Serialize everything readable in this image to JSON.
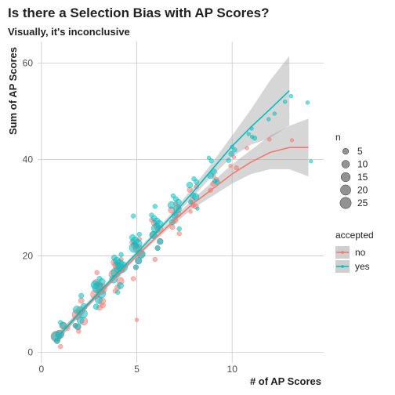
{
  "chart_data": {
    "type": "scatter",
    "title": "Is there a Selection Bias with AP Scores?",
    "subtitle": "Visually, it's inconclusive",
    "xlabel": "# of AP Scores",
    "ylabel": "Sum of AP Scores",
    "xlim": [
      -0.2,
      14.8
    ],
    "ylim": [
      -2.2,
      64.5
    ],
    "x_ticks": [
      0,
      5,
      10
    ],
    "y_ticks": [
      0,
      20,
      40,
      60
    ],
    "grid": true,
    "legend_placement": "right",
    "size_legend": {
      "title": "n",
      "entries": [
        {
          "label": "5",
          "value": 5
        },
        {
          "label": "10",
          "value": 10
        },
        {
          "label": "15",
          "value": 15
        },
        {
          "label": "20",
          "value": 20
        },
        {
          "label": "25",
          "value": 25
        }
      ]
    },
    "color_legend": {
      "title": "accepted",
      "entries": [
        {
          "label": "no",
          "color": "#f8766d"
        },
        {
          "label": "yes",
          "color": "#00bfc4"
        }
      ]
    },
    "series": [
      {
        "name": "no",
        "color": "#f8766d",
        "points": [
          [
            1,
            4,
            22
          ],
          [
            1,
            3,
            14
          ],
          [
            1,
            5,
            8
          ],
          [
            1,
            2,
            4
          ],
          [
            1,
            1,
            2
          ],
          [
            1.2,
            5,
            2
          ],
          [
            2,
            8,
            18
          ],
          [
            2,
            9,
            12
          ],
          [
            2,
            7,
            10
          ],
          [
            2,
            6,
            6
          ],
          [
            2,
            10,
            4
          ],
          [
            2,
            5,
            3
          ],
          [
            2,
            4,
            2
          ],
          [
            3,
            13,
            24
          ],
          [
            3,
            12,
            16
          ],
          [
            3,
            14,
            12
          ],
          [
            3,
            11,
            8
          ],
          [
            3,
            15,
            6
          ],
          [
            3,
            10,
            4
          ],
          [
            3,
            9,
            3
          ],
          [
            3,
            16,
            2
          ],
          [
            4,
            17,
            22
          ],
          [
            4,
            16,
            14
          ],
          [
            4,
            18,
            12
          ],
          [
            4,
            15,
            9
          ],
          [
            4,
            19,
            6
          ],
          [
            4,
            14,
            4
          ],
          [
            4,
            20,
            2
          ],
          [
            4,
            12,
            2
          ],
          [
            5,
            21,
            14
          ],
          [
            5,
            20,
            10
          ],
          [
            5,
            22,
            8
          ],
          [
            5,
            19,
            6
          ],
          [
            5,
            23,
            4
          ],
          [
            5,
            18,
            3
          ],
          [
            5,
            24,
            2
          ],
          [
            5,
            16,
            2
          ],
          [
            5,
            6,
            1
          ],
          [
            6,
            25,
            10
          ],
          [
            6,
            24,
            8
          ],
          [
            6,
            26,
            6
          ],
          [
            6,
            23,
            5
          ],
          [
            6,
            27,
            4
          ],
          [
            6,
            22,
            3
          ],
          [
            6,
            28,
            2
          ],
          [
            6,
            20,
            2
          ],
          [
            7,
            28,
            8
          ],
          [
            7,
            29,
            6
          ],
          [
            7,
            27,
            5
          ],
          [
            7,
            30,
            3
          ],
          [
            7,
            26,
            3
          ],
          [
            7,
            31,
            2
          ],
          [
            7,
            25,
            2
          ],
          [
            8,
            32,
            5
          ],
          [
            8,
            31,
            4
          ],
          [
            8,
            33,
            3
          ],
          [
            8,
            30,
            2
          ],
          [
            8,
            34,
            2
          ],
          [
            8,
            29,
            1
          ],
          [
            9,
            35,
            3
          ],
          [
            9,
            36,
            2
          ],
          [
            9,
            34,
            2
          ],
          [
            9,
            37,
            1
          ],
          [
            10,
            39,
            2
          ],
          [
            10,
            38,
            1
          ],
          [
            10,
            40,
            1
          ],
          [
            11,
            42,
            1
          ],
          [
            12,
            44,
            1
          ],
          [
            13,
            44,
            1
          ]
        ]
      },
      {
        "name": "yes",
        "color": "#00bfc4",
        "points": [
          [
            1,
            4,
            16
          ],
          [
            1,
            3,
            10
          ],
          [
            1,
            5,
            6
          ],
          [
            1,
            2,
            4
          ],
          [
            1,
            6,
            2
          ],
          [
            2,
            8,
            14
          ],
          [
            2,
            9,
            10
          ],
          [
            2,
            7,
            8
          ],
          [
            2,
            10,
            6
          ],
          [
            2,
            6,
            4
          ],
          [
            2,
            11,
            3
          ],
          [
            2,
            5,
            2
          ],
          [
            3,
            13,
            22
          ],
          [
            3,
            12,
            14
          ],
          [
            3,
            14,
            12
          ],
          [
            3,
            11,
            8
          ],
          [
            3,
            15,
            6
          ],
          [
            3,
            10,
            4
          ],
          [
            3,
            16,
            3
          ],
          [
            4,
            17,
            24
          ],
          [
            4,
            16,
            18
          ],
          [
            4,
            18,
            14
          ],
          [
            4,
            15,
            10
          ],
          [
            4,
            19,
            8
          ],
          [
            4,
            14,
            6
          ],
          [
            4,
            20,
            4
          ],
          [
            4,
            13,
            2
          ],
          [
            4,
            21,
            2
          ],
          [
            5,
            21,
            18
          ],
          [
            5,
            22,
            14
          ],
          [
            5,
            20,
            12
          ],
          [
            5,
            23,
            9
          ],
          [
            5,
            19,
            7
          ],
          [
            5,
            24,
            5
          ],
          [
            5,
            18,
            3
          ],
          [
            5,
            25,
            2
          ],
          [
            5,
            29,
            2
          ],
          [
            6,
            25,
            14
          ],
          [
            6,
            26,
            11
          ],
          [
            6,
            24,
            9
          ],
          [
            6,
            27,
            7
          ],
          [
            6,
            23,
            5
          ],
          [
            6,
            28,
            4
          ],
          [
            6,
            22,
            3
          ],
          [
            6,
            29,
            2
          ],
          [
            6,
            31,
            2
          ],
          [
            7,
            29,
            10
          ],
          [
            7,
            30,
            8
          ],
          [
            7,
            28,
            6
          ],
          [
            7,
            31,
            5
          ],
          [
            7,
            27,
            4
          ],
          [
            7,
            32,
            3
          ],
          [
            7,
            26,
            2
          ],
          [
            7,
            33,
            2
          ],
          [
            8,
            33,
            7
          ],
          [
            8,
            34,
            5
          ],
          [
            8,
            32,
            4
          ],
          [
            8,
            35,
            3
          ],
          [
            8,
            31,
            2
          ],
          [
            8,
            36,
            2
          ],
          [
            8,
            30,
            1
          ],
          [
            9,
            37,
            5
          ],
          [
            9,
            38,
            4
          ],
          [
            9,
            36,
            3
          ],
          [
            9,
            39,
            2
          ],
          [
            9,
            35,
            2
          ],
          [
            9,
            40,
            1
          ],
          [
            10,
            41,
            3
          ],
          [
            10,
            42,
            2
          ],
          [
            10,
            40,
            2
          ],
          [
            10,
            43,
            1
          ],
          [
            11,
            45,
            2
          ],
          [
            11,
            46,
            1
          ],
          [
            11,
            44,
            1
          ],
          [
            12,
            49,
            1
          ],
          [
            12,
            48,
            1
          ],
          [
            13,
            53,
            1
          ],
          [
            13,
            52,
            1
          ],
          [
            14,
            52,
            1
          ],
          [
            14,
            40,
            1
          ],
          [
            11.2,
            47,
            1
          ]
        ]
      }
    ],
    "smooth_lines": [
      {
        "name": "no",
        "color": "#f8766d",
        "points": [
          [
            1,
            3.8
          ],
          [
            2,
            8
          ],
          [
            3,
            12
          ],
          [
            4,
            16
          ],
          [
            5,
            20
          ],
          [
            6,
            23.8
          ],
          [
            7,
            27.5
          ],
          [
            8,
            31
          ],
          [
            9,
            34
          ],
          [
            10,
            37
          ],
          [
            11,
            39.5
          ],
          [
            12,
            41.5
          ],
          [
            13,
            42.5
          ],
          [
            14,
            42.5
          ]
        ],
        "band_upper": [
          [
            1,
            4.6
          ],
          [
            2,
            8.5
          ],
          [
            3,
            12.4
          ],
          [
            4,
            16.4
          ],
          [
            5,
            20.4
          ],
          [
            6,
            24.3
          ],
          [
            7,
            28.2
          ],
          [
            8,
            32
          ],
          [
            9,
            35.5
          ],
          [
            10,
            39
          ],
          [
            11,
            42
          ],
          [
            12,
            45
          ],
          [
            13,
            47
          ],
          [
            14,
            48.5
          ]
        ],
        "band_lower": [
          [
            1,
            3
          ],
          [
            2,
            7.5
          ],
          [
            3,
            11.6
          ],
          [
            4,
            15.6
          ],
          [
            5,
            19.6
          ],
          [
            6,
            23.3
          ],
          [
            7,
            26.8
          ],
          [
            8,
            30
          ],
          [
            9,
            32.5
          ],
          [
            10,
            35
          ],
          [
            11,
            37
          ],
          [
            12,
            38
          ],
          [
            13,
            38
          ],
          [
            14,
            36.5
          ]
        ]
      },
      {
        "name": "yes",
        "color": "#00bfc4",
        "points": [
          [
            1,
            3.8
          ],
          [
            2,
            8.2
          ],
          [
            3,
            12.4
          ],
          [
            4,
            16.5
          ],
          [
            5,
            20.6
          ],
          [
            6,
            24.8
          ],
          [
            7,
            29
          ],
          [
            8,
            33.5
          ],
          [
            9,
            38.2
          ],
          [
            10,
            42.8
          ],
          [
            11,
            46.8
          ],
          [
            12,
            50.5
          ],
          [
            13,
            54.3
          ]
        ],
        "band_upper": [
          [
            1,
            4.6
          ],
          [
            2,
            8.7
          ],
          [
            3,
            12.8
          ],
          [
            4,
            16.9
          ],
          [
            5,
            21
          ],
          [
            6,
            25.3
          ],
          [
            7,
            29.7
          ],
          [
            8,
            34.5
          ],
          [
            9,
            39.6
          ],
          [
            10,
            45
          ],
          [
            11,
            50.5
          ],
          [
            12,
            56.5
          ],
          [
            13,
            61.5
          ]
        ],
        "band_lower": [
          [
            1,
            3
          ],
          [
            2,
            7.7
          ],
          [
            3,
            12
          ],
          [
            4,
            16.1
          ],
          [
            5,
            20.2
          ],
          [
            6,
            24.3
          ],
          [
            7,
            28.3
          ],
          [
            8,
            32.5
          ],
          [
            9,
            36.8
          ],
          [
            10,
            40.6
          ],
          [
            11,
            43.1
          ],
          [
            12,
            44.5
          ],
          [
            13,
            47.1
          ]
        ]
      }
    ]
  }
}
